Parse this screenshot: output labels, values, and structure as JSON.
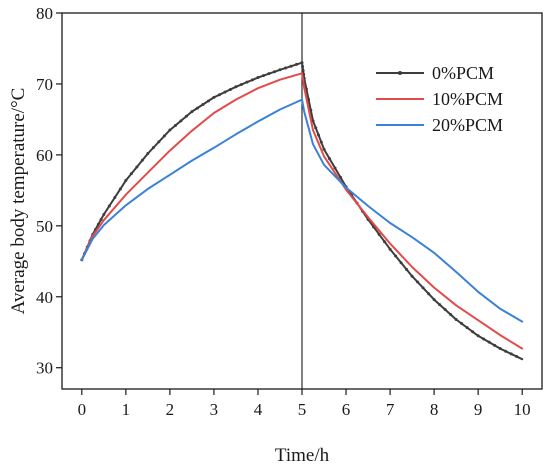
{
  "chart_data": {
    "type": "line",
    "title": "",
    "xlabel": "Time/h",
    "ylabel": "Average body temperature/°C",
    "xlim": [
      -0.45,
      10.45
    ],
    "ylim": [
      27,
      80
    ],
    "xticks": [
      0,
      1,
      2,
      3,
      4,
      5,
      6,
      7,
      8,
      9,
      10
    ],
    "yticks": [
      30,
      40,
      50,
      60,
      70,
      80
    ],
    "grid": false,
    "legend_position": "top-right",
    "vertical_line_x": 5,
    "series": [
      {
        "name": "0%PCM",
        "color": "#3d3d3d",
        "marker": "dot",
        "x": [
          0,
          0.25,
          0.5,
          1,
          1.5,
          2,
          2.5,
          3,
          3.5,
          4,
          4.5,
          5,
          5.05,
          5.25,
          5.5,
          6,
          6.5,
          7,
          7.5,
          8,
          8.5,
          9,
          9.5,
          10
        ],
        "y": [
          45.2,
          48.8,
          51.6,
          56.4,
          60.2,
          63.5,
          66.1,
          68.1,
          69.6,
          70.9,
          72.0,
          73.0,
          70.8,
          64.8,
          60.8,
          55.5,
          50.9,
          46.7,
          42.9,
          39.6,
          36.8,
          34.5,
          32.7,
          31.2
        ]
      },
      {
        "name": "10%PCM",
        "color": "#e34a4a",
        "x": [
          0,
          0.25,
          0.5,
          1,
          1.5,
          2,
          2.5,
          3,
          3.5,
          4,
          4.5,
          5,
          5.05,
          5.25,
          5.5,
          6,
          6.5,
          7,
          7.5,
          8,
          8.5,
          9,
          9.5,
          10
        ],
        "y": [
          45.2,
          48.6,
          50.8,
          54.4,
          57.5,
          60.6,
          63.4,
          65.9,
          67.8,
          69.4,
          70.6,
          71.5,
          69.5,
          63.5,
          59.8,
          55.1,
          51.2,
          47.5,
          44.2,
          41.3,
          38.8,
          36.7,
          34.6,
          32.7
        ]
      },
      {
        "name": "20%PCM",
        "color": "#3b82d6",
        "x": [
          0,
          0.25,
          0.5,
          1,
          1.5,
          2,
          2.5,
          3,
          3.5,
          4,
          4.5,
          5,
          5.05,
          5.25,
          5.5,
          6,
          6.5,
          7,
          7.5,
          8,
          8.5,
          9,
          9.5,
          10
        ],
        "y": [
          45.2,
          48.2,
          50.1,
          52.9,
          55.2,
          57.2,
          59.2,
          61.0,
          62.9,
          64.7,
          66.4,
          67.8,
          66.1,
          61.5,
          58.6,
          55.4,
          52.8,
          50.4,
          48.4,
          46.2,
          43.5,
          40.7,
          38.3,
          36.5
        ]
      }
    ]
  }
}
